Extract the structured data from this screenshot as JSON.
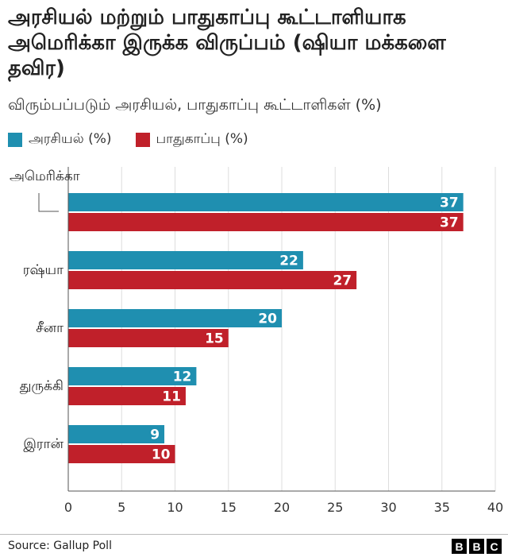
{
  "title": "அரசியல் மற்றும் பாதுகாப்பு கூட்டாளியாக அமெரிக்கா இருக்க விருப்பம் (ஷியா மக்களை தவிர)",
  "subtitle": "விரும்பப்படும் அரசியல், பாதுகாப்பு கூட்டாளிகள் (%)",
  "source": "Source: Gallup Poll",
  "logo": [
    "B",
    "B",
    "C"
  ],
  "colors": {
    "political": "#1f8fb0",
    "security": "#c0202a"
  },
  "chart_data": {
    "type": "bar",
    "orientation": "horizontal",
    "categories": [
      "அமெரிக்கா",
      "ரஷ்யா",
      "சீனா",
      "துருக்கி",
      "இரான்"
    ],
    "series": [
      {
        "name": "அரசியல் (%)",
        "values": [
          37,
          22,
          20,
          12,
          9
        ]
      },
      {
        "name": "பாதுகாப்பு  (%)",
        "values": [
          37,
          27,
          15,
          11,
          10
        ]
      }
    ],
    "xlim": [
      0,
      40
    ],
    "xticks": [
      0,
      5,
      10,
      15,
      20,
      25,
      30,
      35,
      40
    ],
    "grid": true,
    "legend": "top-left"
  }
}
